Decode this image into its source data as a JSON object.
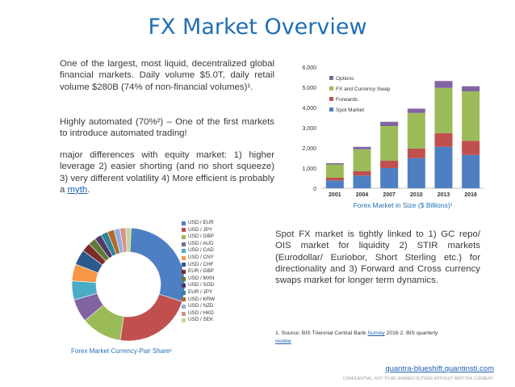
{
  "slide": {
    "title": "FX Market Overview",
    "p1": "One of the largest, most liquid, decentralized global financial markets. Daily volume $5.0T, daily retail volume $280B (74% of non-financial volumes)¹.",
    "p2": "Highly automated (70%²) – One of the first markets to introduce automated trading!",
    "p3_text": "major differences with equity market: 1) higher leverage 2) easier shorting (and no short squeeze) 3) very different volatility 4) More efficient is probably a",
    "p3_link": "myth",
    "p3_end": ".",
    "spot_text": "Spot FX market is tightly linked to 1) GC repo/ OIS market for liquidity 2) STIR markets (Eurodollar/ Euriobor, Short Sterling etc.) for directionality and 3) Forward and Cross currency swaps market for longer term dynamics.",
    "foot_a": "1. Source: BIS Triennial Central Bank",
    "foot_link1": "Survey",
    "foot_b": "2016   2. BIS quarterly",
    "foot_link2": "review",
    "site_link": "quantra-blueshift.quantinsti.com",
    "confidential": "CONFIDENTIAL. NOT TO BE SHARED OUTSIDE WITHOUT WRITTEN CONSENT."
  },
  "chart_data": [
    {
      "type": "bar",
      "stacked": true,
      "title": "Forex Market in Size ($ Billions)¹",
      "categories": [
        "2001",
        "2004",
        "2007",
        "2010",
        "2013",
        "2016"
      ],
      "ylim": [
        0,
        6000
      ],
      "yticks": [
        "0",
        "1,000",
        "2,000",
        "3,000",
        "4,000",
        "5,000",
        "6,000"
      ],
      "legend_position": "top-left",
      "series": [
        {
          "name": "Spot Market",
          "color": "#4e7fc2",
          "values": [
            390,
            630,
            1000,
            1490,
            2050,
            1650
          ]
        },
        {
          "name": "Forwards",
          "color": "#c0504d",
          "values": [
            130,
            210,
            360,
            480,
            680,
            700
          ]
        },
        {
          "name": "FX and Currency Swap",
          "color": "#9bbb59",
          "values": [
            660,
            1090,
            1720,
            1760,
            2240,
            2450
          ]
        },
        {
          "name": "Options",
          "color": "#8064a2",
          "values": [
            60,
            120,
            210,
            210,
            340,
            250
          ]
        }
      ]
    },
    {
      "type": "pie",
      "title": "Forex Market Currency-Pair Share¹",
      "labels": [
        "USD / EUR",
        "USD / JPY",
        "USD / GBP",
        "USD / AUD",
        "USD / CAD",
        "USD / CNY",
        "USD / CHF",
        "EUR / GBP",
        "USD / MXN",
        "USD / SGD",
        "EUR / JPY",
        "USD / KRW",
        "USD / NZD",
        "USD / HKD",
        "USD / SEK"
      ],
      "values": [
        23.0,
        17.7,
        9.2,
        5.2,
        4.3,
        3.8,
        3.5,
        2.0,
        1.7,
        1.6,
        1.6,
        1.5,
        1.4,
        1.3,
        1.2
      ],
      "colors": [
        "#4e7fc2",
        "#c0504d",
        "#9bbb59",
        "#8064a2",
        "#4bacc6",
        "#f79646",
        "#2c5a8c",
        "#7c2d2a",
        "#627a35",
        "#4e3b66",
        "#2f8399",
        "#b4692b",
        "#8eb0db",
        "#dc8f8d",
        "#c4d79b"
      ]
    }
  ]
}
